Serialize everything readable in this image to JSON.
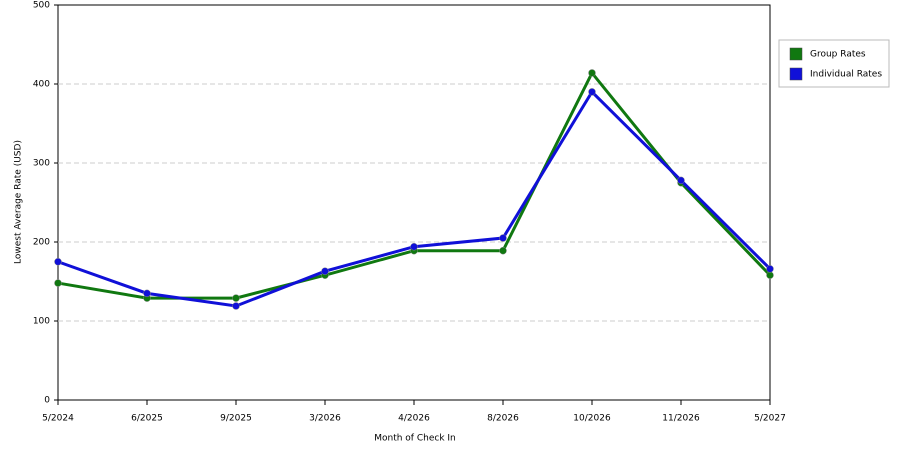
{
  "chart_data": {
    "type": "line",
    "x_label": "Month of Check In",
    "y_label": "Lowest Average Rate (USD)",
    "categories": [
      "5/2024",
      "6/2025",
      "9/2025",
      "3/2026",
      "4/2026",
      "8/2026",
      "10/2026",
      "11/2026",
      "5/2027"
    ],
    "series": [
      {
        "name": "Group Rates",
        "color": "#107810",
        "values": [
          148,
          129,
          129,
          158,
          189,
          189,
          414,
          275,
          158
        ]
      },
      {
        "name": "Individual Rates",
        "color": "#1010d8",
        "values": [
          175,
          135,
          119,
          163,
          194,
          205,
          390,
          278,
          166
        ]
      }
    ],
    "ylim": [
      0,
      500
    ],
    "yticks": [
      0,
      100,
      200,
      300,
      400,
      500
    ],
    "grid": true,
    "legend": "right"
  }
}
